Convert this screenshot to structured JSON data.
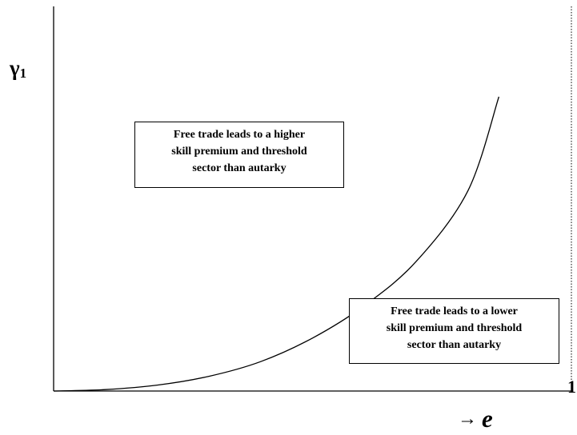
{
  "axes": {
    "y_label": "γ",
    "y_label_subscript": "1",
    "x_arrow": "→",
    "x_label": "e",
    "x_max_label": "1"
  },
  "regions": {
    "upper": {
      "lines": [
        "Free trade leads to a higher",
        "skill premium and threshold",
        "sector than autarky"
      ]
    },
    "lower": {
      "lines": [
        "Free trade leads to a lower",
        "skill premium and threshold",
        "sector than autarky"
      ]
    }
  },
  "chart_data": {
    "type": "line",
    "x_range": [
      0,
      1
    ],
    "series": [
      {
        "shape": "convex-increasing",
        "x": [
          0,
          0.1,
          0.2,
          0.3,
          0.4,
          0.5,
          0.6,
          0.7,
          0.8,
          0.86
        ],
        "y": [
          0,
          0.005,
          0.02,
          0.05,
          0.1,
          0.18,
          0.29,
          0.44,
          0.68,
          1
        ]
      }
    ],
    "reference_lines": [
      {
        "x": 1,
        "style": "dotted"
      }
    ],
    "colors": {
      "line": "#000000",
      "background": "#ffffff"
    }
  }
}
